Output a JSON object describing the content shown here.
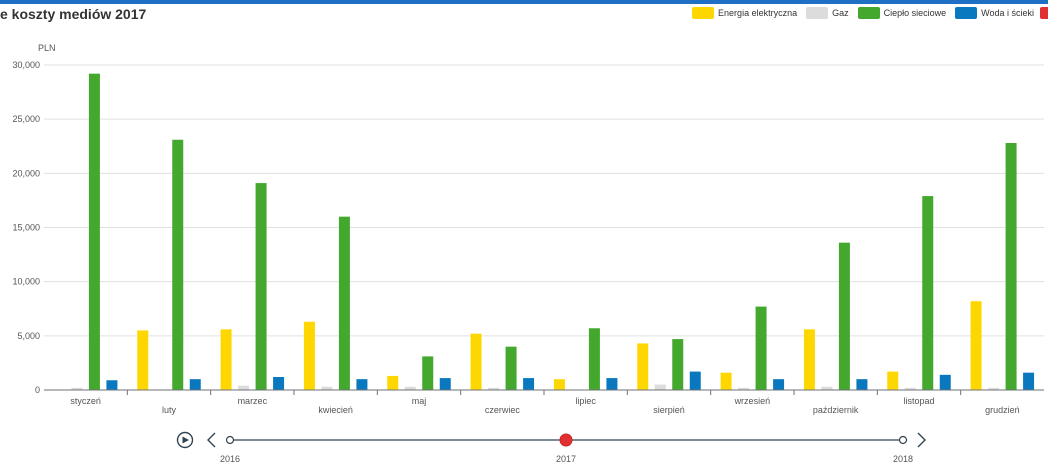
{
  "title": "e koszty mediów 2017",
  "legend": [
    {
      "name": "Energia elektryczna",
      "color": "#ffd700"
    },
    {
      "name": "Gaz",
      "color": "#dcdcdc"
    },
    {
      "name": "Ciepło sieciowe",
      "color": "#44a82f"
    },
    {
      "name": "Woda i ścieki",
      "color": "#0a78be"
    }
  ],
  "legend_partial_color": "#e03030",
  "chart_data": {
    "type": "bar",
    "title": "e koszty mediów 2017",
    "ylabel": "PLN",
    "xlabel": "",
    "ylim": [
      0,
      30000
    ],
    "yticks": [
      "0",
      "5,000",
      "10,000",
      "15,000",
      "20,000",
      "25,000",
      "30,000"
    ],
    "grid": true,
    "legend_position": "top-right",
    "categories": [
      "styczeń",
      "luty",
      "marzec",
      "kwiecień",
      "maj",
      "czerwiec",
      "lipiec",
      "sierpień",
      "wrzesień",
      "październik",
      "listopad",
      "grudzień"
    ],
    "series": [
      {
        "name": "Energia elektryczna",
        "color": "#ffd700",
        "values": [
          0,
          5500,
          5600,
          6300,
          1300,
          5200,
          1000,
          4300,
          1600,
          5600,
          1700,
          8200
        ]
      },
      {
        "name": "Gaz",
        "color": "#dcdcdc",
        "values": [
          200,
          0,
          400,
          300,
          300,
          200,
          0,
          500,
          200,
          300,
          200,
          200
        ]
      },
      {
        "name": "Ciepło sieciowe",
        "color": "#44a82f",
        "values": [
          29200,
          23100,
          19100,
          16000,
          3100,
          4000,
          5700,
          4700,
          7700,
          13600,
          17900,
          22800
        ]
      },
      {
        "name": "Woda i ścieki",
        "color": "#0a78be",
        "values": [
          900,
          1000,
          1200,
          1000,
          1100,
          1100,
          1100,
          1700,
          1000,
          1000,
          1400,
          1600
        ]
      }
    ]
  },
  "timeline": {
    "labels": [
      "2016",
      "2017",
      "2018"
    ],
    "current": "2017",
    "line_color": "#2f4554",
    "active_color": "#e03030"
  }
}
